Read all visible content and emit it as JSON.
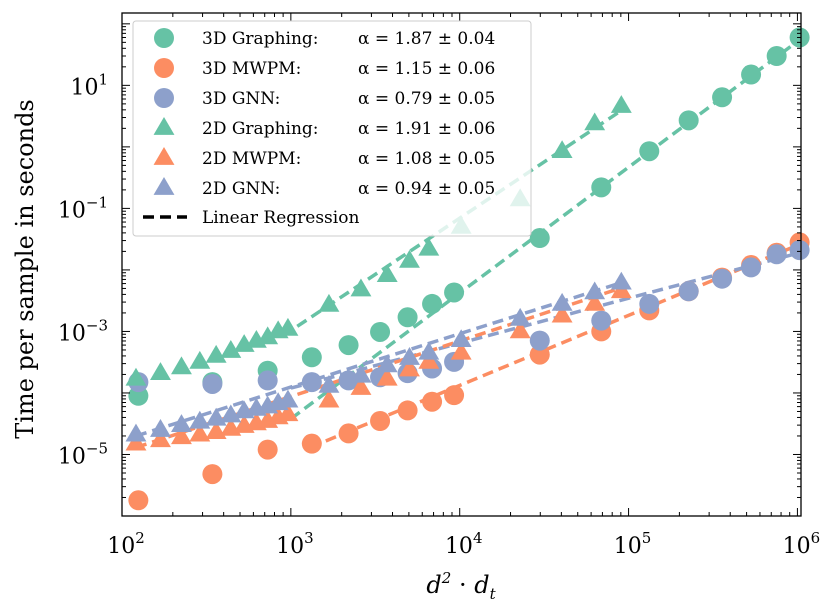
{
  "chart_data": {
    "type": "scatter",
    "x_scale": "log",
    "y_scale": "log",
    "xlim": [
      100,
      1050000
    ],
    "ylim": [
      1e-06,
      150
    ],
    "xlabel": "d² · dₜ",
    "ylabel": "Time per sample in seconds",
    "x_ticks": [
      {
        "value": 100,
        "base": "10",
        "exp": "2"
      },
      {
        "value": 1000,
        "base": "10",
        "exp": "3"
      },
      {
        "value": 10000,
        "base": "10",
        "exp": "4"
      },
      {
        "value": 100000,
        "base": "10",
        "exp": "5"
      },
      {
        "value": 1000000,
        "base": "10",
        "exp": "6"
      }
    ],
    "y_ticks": [
      {
        "value": 1e-05,
        "base": "10",
        "exp": "−5"
      },
      {
        "value": 0.001,
        "base": "10",
        "exp": "−3"
      },
      {
        "value": 0.1,
        "base": "10",
        "exp": "−1"
      },
      {
        "value": 10,
        "base": "10",
        "exp": "1"
      }
    ],
    "legend_position": "top-left",
    "regression_label": "Linear Regression",
    "series": [
      {
        "name": "3D Graphing:",
        "alpha_text": "α = 1.87 ± 0.04",
        "marker": "circle",
        "color": "#66c2a5",
        "x": [
          125,
          343,
          729,
          1331,
          2197,
          3375,
          4913,
          6859,
          9261,
          29791,
          68921,
          132651,
          226981,
          357911,
          531441,
          753571,
          1030301
        ],
        "y": [
          9e-05,
          0.00015,
          0.00023,
          0.00038,
          0.0006,
          0.00098,
          0.0017,
          0.0028,
          0.0043,
          0.033,
          0.22,
          0.85,
          2.7,
          6.4,
          15,
          30,
          60
        ],
        "fit": {
          "x": [
            1000,
            1030301
          ],
          "y": [
            3.8e-05,
            55
          ]
        }
      },
      {
        "name": "3D MWPM:",
        "alpha_text": "α = 1.15 ± 0.06",
        "marker": "circle",
        "color": "#fc8d62",
        "x": [
          125,
          343,
          729,
          1331,
          2197,
          3375,
          4913,
          6859,
          9261,
          29791,
          68921,
          132651,
          226981,
          357911,
          531441,
          753571,
          1030301
        ],
        "y": [
          1.8e-06,
          4.8e-06,
          1.2e-05,
          1.5e-05,
          2.2e-05,
          3.5e-05,
          5.2e-05,
          7.2e-05,
          9.2e-05,
          0.00042,
          0.001,
          0.0022,
          0.0045,
          0.0075,
          0.012,
          0.019,
          0.028
        ],
        "fit": {
          "x": [
            1300,
            1030301
          ],
          "y": [
            1.3e-05,
            0.026
          ]
        }
      },
      {
        "name": "3D GNN:",
        "alpha_text": "α = 0.79 ± 0.05",
        "marker": "circle",
        "color": "#8da0cb",
        "x": [
          125,
          343,
          729,
          1331,
          2197,
          3375,
          4913,
          6859,
          9261,
          29791,
          68921,
          132651,
          226981,
          357911,
          531441,
          753571,
          1030301
        ],
        "y": [
          0.00015,
          0.00014,
          0.00016,
          0.00015,
          0.00016,
          0.00018,
          0.00021,
          0.00025,
          0.00032,
          0.00071,
          0.0015,
          0.0028,
          0.0045,
          0.0072,
          0.011,
          0.018,
          0.021
        ],
        "fit": {
          "x": [
            1000,
            1030301
          ],
          "y": [
            0.00012,
            0.019
          ]
        }
      },
      {
        "name": "2D Graphing:",
        "alpha_text": "α = 1.91 ± 0.06",
        "marker": "triangle",
        "color": "#66c2a5",
        "x": [
          121,
          169,
          225,
          289,
          361,
          441,
          529,
          625,
          729,
          841,
          961,
          1681,
          2601,
          3721,
          5041,
          6561,
          10201,
          22801,
          40401,
          63001,
          90601
        ],
        "y": [
          0.00017,
          0.00021,
          0.00026,
          0.00032,
          0.0004,
          0.00048,
          0.0006,
          0.0007,
          0.0008,
          0.001,
          0.0011,
          0.0027,
          0.0048,
          0.0082,
          0.014,
          0.022,
          0.05,
          0.14,
          0.85,
          2.4,
          4.6
        ],
        "fit": {
          "x": [
            900,
            90601
          ],
          "y": [
            0.00085,
            3.9
          ]
        }
      },
      {
        "name": "2D MWPM:",
        "alpha_text": "α = 1.08 ± 0.05",
        "marker": "triangle",
        "color": "#fc8d62",
        "x": [
          121,
          169,
          225,
          289,
          361,
          441,
          529,
          625,
          729,
          841,
          961,
          1681,
          2601,
          3721,
          5041,
          6561,
          10201,
          22801,
          40401,
          63001,
          90601
        ],
        "y": [
          1.5e-05,
          1.7e-05,
          1.9e-05,
          2.1e-05,
          2.3e-05,
          2.6e-05,
          2.9e-05,
          3.2e-05,
          3.5e-05,
          4e-05,
          4.5e-05,
          7.5e-05,
          0.00012,
          0.00017,
          0.00024,
          0.00032,
          0.00045,
          0.001,
          0.0018,
          0.0028,
          0.0045
        ],
        "fit": {
          "x": [
            121,
            90601
          ],
          "y": [
            1.3e-05,
            0.0051
          ]
        }
      },
      {
        "name": "2D GNN:",
        "alpha_text": "α = 0.94 ± 0.05",
        "marker": "triangle",
        "color": "#8da0cb",
        "x": [
          121,
          169,
          225,
          289,
          361,
          441,
          529,
          625,
          729,
          841,
          961,
          1681,
          2601,
          3721,
          5041,
          6561,
          10201,
          22801,
          40401,
          63001,
          90601
        ],
        "y": [
          2.1e-05,
          2.5e-05,
          3e-05,
          3.4e-05,
          3.8e-05,
          4.3e-05,
          5e-05,
          5.5e-05,
          6e-05,
          6.8e-05,
          7.5e-05,
          0.00013,
          0.00019,
          0.00028,
          0.00037,
          0.00045,
          0.00072,
          0.0016,
          0.0028,
          0.0043,
          0.0062
        ],
        "fit": {
          "x": [
            121,
            90601
          ],
          "y": [
            2e-05,
            0.0062
          ]
        }
      }
    ]
  }
}
